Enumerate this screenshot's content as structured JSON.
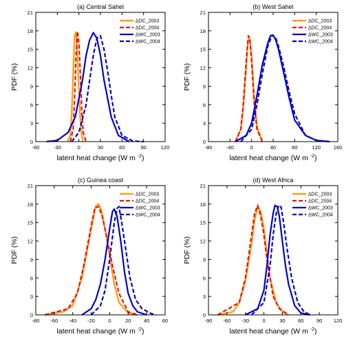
{
  "chart_data": [
    {
      "type": "line",
      "title": "(a) Central Sahel",
      "xlabel": "latent heat change (W m",
      "xlabel_sup": "-2",
      "xlabel_close": ")",
      "ylabel": "PDF (%)",
      "xlim": [
        -60,
        120
      ],
      "ylim": [
        0,
        21
      ],
      "xticks": [
        -60,
        -30,
        0,
        30,
        60,
        90,
        120
      ],
      "yticks": [
        0,
        3,
        6,
        9,
        12,
        15,
        18,
        21
      ],
      "legend_position": "top-right",
      "series": [
        {
          "name": "ΔDC_2003",
          "color": "#ff9900",
          "dash": "solid",
          "x": [
            -16,
            -12,
            -10,
            -8,
            -6,
            -4,
            -2,
            0,
            2,
            4,
            6
          ],
          "y": [
            0,
            1,
            4.5,
            11,
            17.2,
            17.8,
            14,
            8,
            3.5,
            1,
            0
          ]
        },
        {
          "name": "ΔDC_2004",
          "color": "#ee1111",
          "dash": "dashed",
          "x": [
            -12,
            -8,
            -6,
            -4,
            -2,
            0,
            2,
            4,
            6,
            10
          ],
          "y": [
            0,
            2,
            7,
            14,
            17.9,
            16,
            11,
            5,
            1.5,
            0
          ]
        },
        {
          "name": "ΔWC_2003",
          "color": "#0000cc",
          "dash": "solid",
          "x": [
            -45,
            -30,
            -15,
            -5,
            5,
            10,
            15,
            20,
            25,
            30,
            35,
            45,
            55,
            70
          ],
          "y": [
            0,
            0.2,
            1.5,
            4,
            10,
            14,
            16.5,
            17.7,
            16.8,
            14,
            10,
            4,
            1,
            0
          ]
        },
        {
          "name": "ΔWC_2004",
          "color": "#0000cc",
          "dash": "dashed",
          "x": [
            -10,
            0,
            10,
            15,
            20,
            25,
            30,
            35,
            40,
            45,
            50,
            60,
            75,
            90
          ],
          "y": [
            0,
            1.5,
            6,
            10,
            14,
            16.8,
            17.2,
            15,
            11.5,
            7.5,
            4,
            1,
            0.1,
            0
          ]
        }
      ]
    },
    {
      "type": "line",
      "title": "(b) West Sahel",
      "xlabel": "latent heat change (W m",
      "xlabel_sup": "-2",
      "xlabel_close": ")",
      "ylabel": "PDF (%)",
      "xlim": [
        -80,
        160
      ],
      "ylim": [
        0,
        21
      ],
      "xticks": [
        -80,
        -40,
        0,
        40,
        80,
        120,
        160
      ],
      "yticks": [
        0,
        3,
        6,
        9,
        12,
        15,
        18,
        21
      ],
      "legend_position": "top-right",
      "series": [
        {
          "name": "ΔDC_2003",
          "color": "#ff9900",
          "dash": "solid",
          "x": [
            -30,
            -20,
            -15,
            -10,
            -7,
            -4,
            0,
            5,
            10,
            20
          ],
          "y": [
            0,
            2,
            6,
            12,
            16,
            17,
            14,
            7,
            2.5,
            0
          ]
        },
        {
          "name": "ΔDC_2004",
          "color": "#ee1111",
          "dash": "dashed",
          "x": [
            -30,
            -20,
            -15,
            -10,
            -6,
            -3,
            0,
            5,
            10,
            20
          ],
          "y": [
            0,
            2,
            6.5,
            13,
            17.2,
            16.5,
            13,
            6,
            2,
            0
          ]
        },
        {
          "name": "ΔWC_2003",
          "color": "#0000cc",
          "dash": "solid",
          "x": [
            -30,
            -10,
            0,
            10,
            20,
            30,
            35,
            40,
            45,
            50,
            60,
            70,
            80,
            100,
            120,
            145
          ],
          "y": [
            0,
            1,
            3,
            7.5,
            12.5,
            16,
            17.2,
            17.3,
            16.5,
            15,
            11,
            7,
            3.5,
            1,
            0.2,
            0
          ]
        },
        {
          "name": "ΔWC_2004",
          "color": "#0000cc",
          "dash": "dashed",
          "x": [
            -20,
            0,
            10,
            20,
            30,
            38,
            45,
            50,
            60,
            70,
            80,
            100,
            120,
            140
          ],
          "y": [
            0,
            2,
            6,
            11,
            15.5,
            17.3,
            16.8,
            15.5,
            12,
            8,
            4.5,
            1,
            0.2,
            0
          ]
        }
      ]
    },
    {
      "type": "line",
      "title": "(c) Guinea coast",
      "xlabel": "latent heat change (W m",
      "xlabel_sup": "-2",
      "xlabel_close": ")",
      "ylabel": "PDF (%)",
      "xlim": [
        -80,
        60
      ],
      "ylim": [
        0,
        21
      ],
      "xticks": [
        -80,
        -60,
        -40,
        -20,
        0,
        20,
        40,
        60
      ],
      "yticks": [
        0,
        3,
        6,
        9,
        12,
        15,
        18,
        21
      ],
      "legend_position": "top-right",
      "series": [
        {
          "name": "ΔDC_2003",
          "color": "#ff9900",
          "dash": "solid",
          "x": [
            -70,
            -50,
            -40,
            -30,
            -25,
            -20,
            -15,
            -12,
            -9,
            -5,
            0,
            5,
            10,
            20,
            30
          ],
          "y": [
            0,
            0.5,
            1.5,
            6,
            10,
            14,
            17.7,
            18,
            17,
            14,
            9.5,
            5,
            2,
            0.3,
            0
          ]
        },
        {
          "name": "ΔDC_2004",
          "color": "#ee1111",
          "dash": "dashed",
          "x": [
            -70,
            -45,
            -35,
            -28,
            -20,
            -16,
            -12,
            -8,
            -3,
            3,
            10,
            20,
            30
          ],
          "y": [
            0,
            1,
            3.5,
            8,
            14.5,
            17.4,
            17.6,
            16,
            12.5,
            8,
            3.5,
            0.5,
            0
          ]
        },
        {
          "name": "ΔWC_2003",
          "color": "#0000cc",
          "dash": "solid",
          "x": [
            -30,
            -20,
            -15,
            -10,
            -5,
            0,
            3,
            5,
            8,
            12,
            16,
            20,
            25,
            30,
            40
          ],
          "y": [
            0,
            1,
            2.5,
            5,
            9,
            14,
            16.8,
            17.2,
            16,
            12,
            7,
            3.5,
            1.5,
            0.5,
            0
          ]
        },
        {
          "name": "ΔWC_2004",
          "color": "#0000cc",
          "dash": "dashed",
          "x": [
            -20,
            -10,
            -5,
            0,
            5,
            8,
            10,
            13,
            17,
            22,
            28,
            35,
            45,
            50
          ],
          "y": [
            0,
            1.5,
            4,
            9,
            15,
            17.3,
            17.6,
            15,
            11,
            6,
            2.5,
            1,
            0.2,
            0
          ]
        }
      ]
    },
    {
      "type": "line",
      "title": "(d) West Africa",
      "xlabel": "latent heat change (W m",
      "xlabel_sup": "-2",
      "xlabel_close": ")",
      "ylabel": "PDF (%)",
      "xlim": [
        -90,
        120
      ],
      "ylim": [
        0,
        21
      ],
      "xticks": [
        -90,
        -60,
        -30,
        0,
        30,
        60,
        90,
        120
      ],
      "yticks": [
        0,
        3,
        6,
        9,
        12,
        15,
        18,
        21
      ],
      "legend_position": "top-right",
      "series": [
        {
          "name": "ΔDC_2003",
          "color": "#ff9900",
          "dash": "solid",
          "x": [
            -75,
            -50,
            -40,
            -30,
            -20,
            -15,
            -10,
            -5,
            0,
            5,
            10,
            20,
            30,
            40
          ],
          "y": [
            0,
            0.5,
            2,
            5.5,
            11.5,
            15.5,
            17.5,
            16.8,
            14,
            10,
            6,
            2,
            0.5,
            0
          ]
        },
        {
          "name": "ΔDC_2004",
          "color": "#ee1111",
          "dash": "dashed",
          "x": [
            -75,
            -40,
            -30,
            -20,
            -15,
            -10,
            -5,
            0,
            5,
            15,
            25,
            40
          ],
          "y": [
            0,
            2,
            6,
            13,
            16.5,
            17.8,
            16,
            13,
            9,
            3,
            1,
            0
          ]
        },
        {
          "name": "ΔWC_2003",
          "color": "#0000cc",
          "dash": "solid",
          "x": [
            -30,
            -10,
            0,
            5,
            10,
            15,
            18,
            22,
            25,
            30,
            35,
            40,
            50,
            60,
            75
          ],
          "y": [
            0,
            1,
            4,
            8,
            13,
            16.5,
            17.8,
            17.5,
            16,
            12,
            8,
            5,
            1.5,
            0.3,
            0
          ]
        },
        {
          "name": "ΔWC_2004",
          "color": "#0000cc",
          "dash": "dashed",
          "x": [
            -20,
            0,
            10,
            15,
            20,
            24,
            28,
            32,
            38,
            45,
            55,
            65,
            75
          ],
          "y": [
            0,
            2,
            8,
            13,
            16.5,
            17.8,
            17.5,
            15,
            10.5,
            6,
            2,
            0.5,
            0
          ]
        }
      ]
    }
  ]
}
